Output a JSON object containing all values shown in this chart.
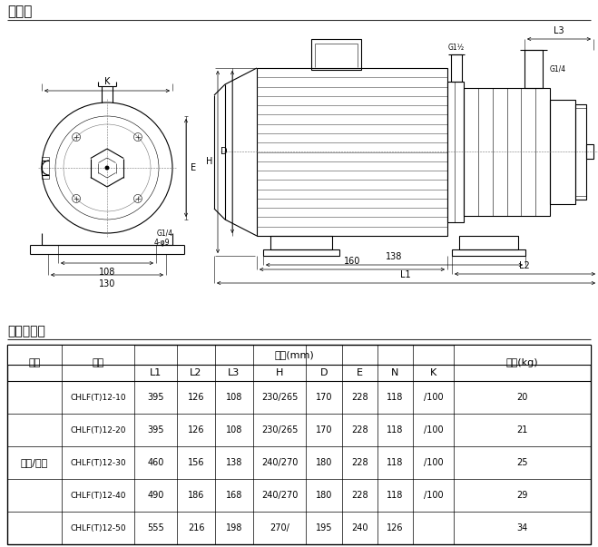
{
  "title_diagram": "安装图",
  "title_table": "尺寸和重量",
  "bg_color": "#ffffff",
  "text_color": "#000000",
  "motor_label": "三相/单相",
  "table_headers_row1": [
    "电机",
    "型号",
    "尺寸(mm)",
    "重量(kg)"
  ],
  "table_headers_row2": [
    "L1",
    "L2",
    "L3",
    "H",
    "D",
    "E",
    "N",
    "K"
  ],
  "table_data": [
    [
      "CHLF(T)12-10",
      "395",
      "126",
      "108",
      "230/265",
      "170",
      "228",
      "118",
      "/100",
      "20"
    ],
    [
      "CHLF(T)12-20",
      "395",
      "126",
      "108",
      "230/265",
      "170",
      "228",
      "118",
      "/100",
      "21"
    ],
    [
      "CHLF(T)12-30",
      "460",
      "156",
      "138",
      "240/270",
      "180",
      "228",
      "118",
      "/100",
      "25"
    ],
    [
      "CHLF(T)12-40",
      "490",
      "186",
      "168",
      "240/270",
      "180",
      "228",
      "118",
      "/100",
      "29"
    ],
    [
      "CHLF(T)12-50",
      "555",
      "216",
      "198",
      "270/",
      "195",
      "240",
      "126",
      "",
      "34"
    ]
  ],
  "line_color": "#000000",
  "lw": 0.8,
  "lw_thin": 0.4,
  "lw_dim": 0.5
}
